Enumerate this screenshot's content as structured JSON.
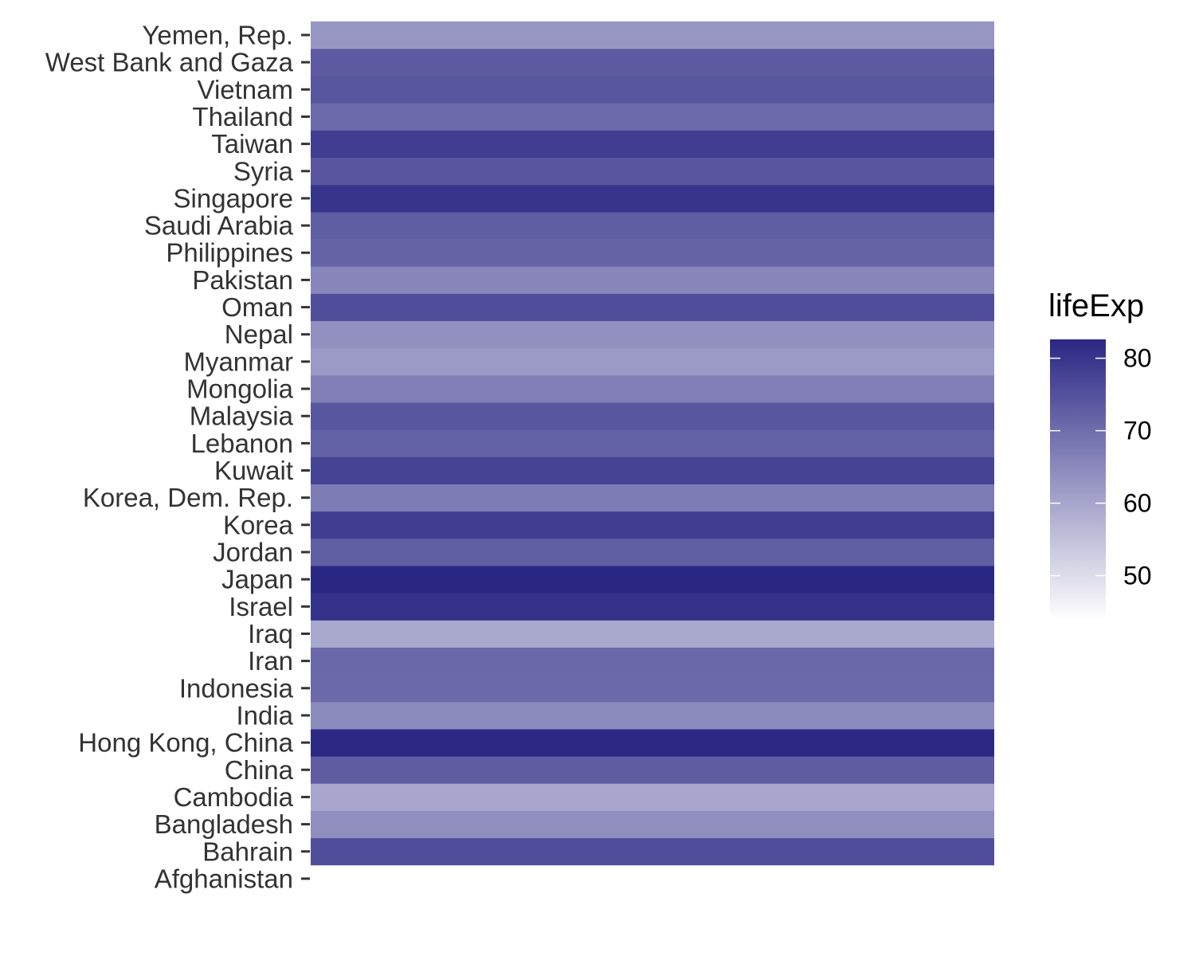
{
  "chart_data": {
    "type": "heatmap",
    "y_categories": [
      "Afghanistan",
      "Bahrain",
      "Bangladesh",
      "Cambodia",
      "China",
      "Hong Kong, China",
      "India",
      "Indonesia",
      "Iran",
      "Iraq",
      "Israel",
      "Japan",
      "Jordan",
      "Korea",
      "Korea, Dem. Rep.",
      "Kuwait",
      "Lebanon",
      "Malaysia",
      "Mongolia",
      "Myanmar",
      "Nepal",
      "Oman",
      "Pakistan",
      "Philippines",
      "Saudi Arabia",
      "Singapore",
      "Syria",
      "Taiwan",
      "Thailand",
      "Vietnam",
      "West Bank and Gaza",
      "Yemen, Rep."
    ],
    "values": [
      43.8,
      75.6,
      64.1,
      59.7,
      73.0,
      82.2,
      64.7,
      70.7,
      71.0,
      59.5,
      80.7,
      82.6,
      72.5,
      78.6,
      67.3,
      77.6,
      72.0,
      74.2,
      66.8,
      62.1,
      63.8,
      75.6,
      65.5,
      71.7,
      72.8,
      80.0,
      74.1,
      78.4,
      70.6,
      74.2,
      73.4,
      62.7
    ],
    "legend": {
      "title": "lifeExp",
      "ticks": [
        50,
        60,
        70,
        80
      ],
      "tick_labels": [
        "50",
        "60",
        "70",
        "80"
      ],
      "range": [
        43.8,
        82.6
      ],
      "low_color": "#ffffff",
      "high_color": "#2a2784",
      "position": "right"
    },
    "x_tick_labels": [],
    "xlabel": "",
    "ylabel": "",
    "grid": false
  }
}
